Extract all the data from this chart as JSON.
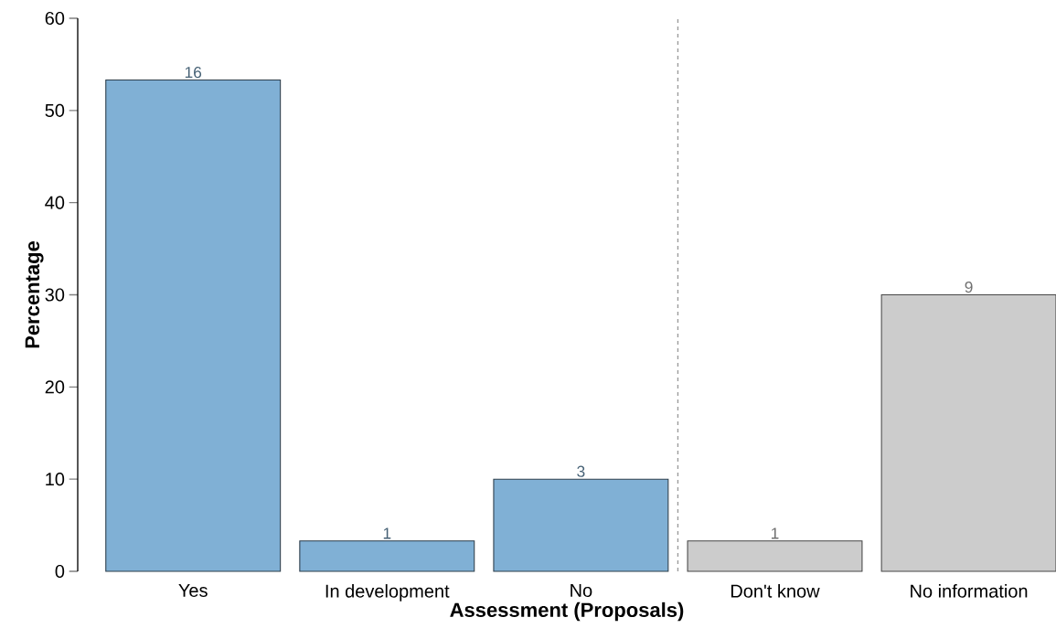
{
  "chart_data": {
    "type": "bar",
    "xlabel": "Assessment (Proposals)",
    "ylabel": "Percentage",
    "categories": [
      "Yes",
      "In development",
      "No",
      "Don't know",
      "No information"
    ],
    "values": [
      53.3,
      3.3,
      10,
      3.3,
      30
    ],
    "colors": [
      "#80b0d5",
      "#80b0d5",
      "#80b0d5",
      "#cccccc",
      "#cccccc"
    ],
    "annotations": [
      "16",
      "1",
      "3",
      "1",
      "9"
    ],
    "ylim": [
      0,
      60
    ],
    "yticks": [
      0,
      10,
      20,
      30,
      40,
      50,
      60
    ],
    "grid": false
  }
}
